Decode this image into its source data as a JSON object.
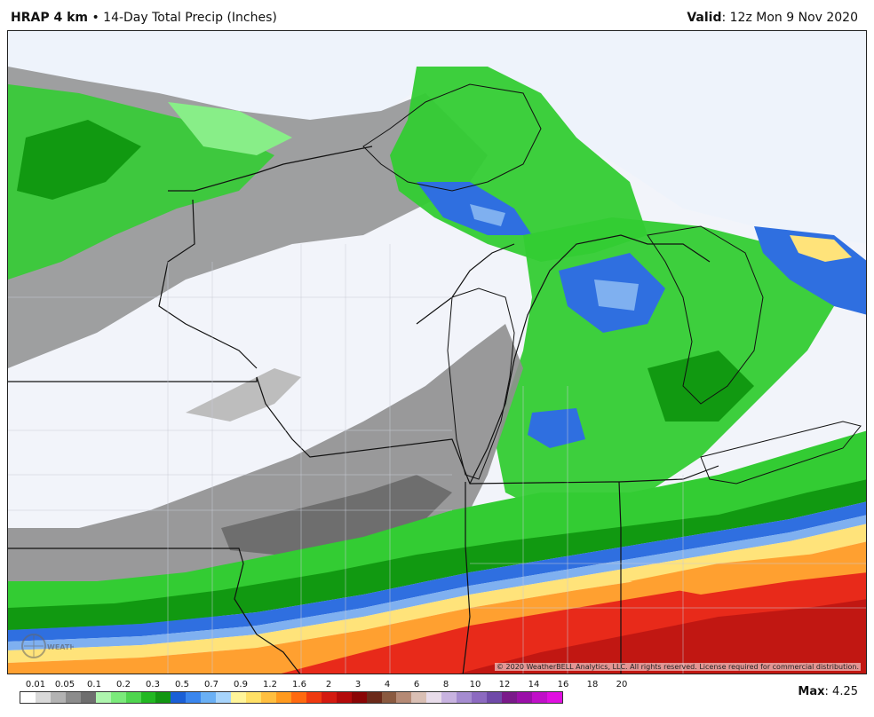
{
  "header": {
    "model": "HRAP 4 km",
    "separator": "•",
    "product": "14-Day Total Precip (Inches)",
    "valid_label": "Valid",
    "valid_value": ": 12z Mon 9 Nov 2020"
  },
  "map": {
    "copyright": "© 2020 WeatherBELL Analytics, LLC. All rights reserved. License required for commercial distribution.",
    "watermark": "WEATHERBELL",
    "colors": {
      "water": "#eef3fb",
      "dry": "#f2f4fa",
      "gray_light": "#bdbdbd",
      "gray_mid": "#8f8f8f",
      "gray_dark": "#6e6e6e",
      "green_light": "#88ee88",
      "green": "#33cc33",
      "green_dark": "#119911",
      "blue": "#2f6fe0",
      "blue_light": "#7fb0f0",
      "yellow": "#ffe37a",
      "orange": "#ffa030",
      "red": "#e82a1a",
      "red_dark": "#b01010"
    }
  },
  "legend": {
    "labels": [
      "0.01",
      "0.05",
      "0.1",
      "0.2",
      "0.3",
      "0.5",
      "0.7",
      "0.9",
      "1.2",
      "1.6",
      "2",
      "3",
      "4",
      "6",
      "8",
      "10",
      "12",
      "14",
      "16",
      "18",
      "20"
    ],
    "colors": [
      "#ffffff",
      "#d9d9d9",
      "#b3b3b3",
      "#8c8c8c",
      "#6e6e6e",
      "#aef5ae",
      "#7bea7b",
      "#4fd54f",
      "#22b822",
      "#129612",
      "#1a5fd6",
      "#3a86ee",
      "#6ab0f5",
      "#a7d4fb",
      "#fff59a",
      "#ffe066",
      "#ffbf40",
      "#ff9a1f",
      "#ff6a10",
      "#ef3a10",
      "#d41a10",
      "#b30a0a",
      "#8a0505",
      "#6b2a1a",
      "#8a5a40",
      "#b58a75",
      "#d9bfb4",
      "#e8dcea",
      "#c8b3e0",
      "#a58cd0",
      "#8c6ac0",
      "#6f4aa8",
      "#7a1a8a",
      "#9a10a8",
      "#c010c8",
      "#e010e0"
    ],
    "max_label": "Max",
    "max_value": ": 4.25"
  }
}
